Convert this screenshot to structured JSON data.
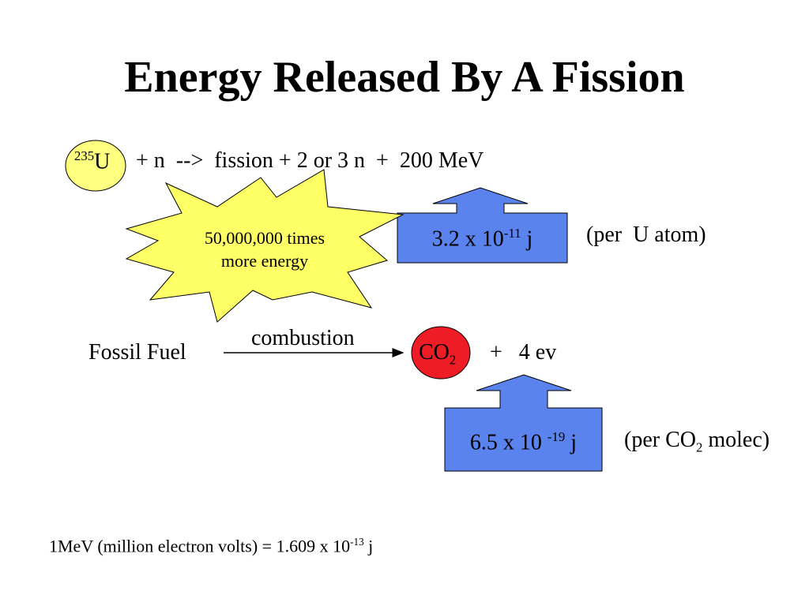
{
  "title": "Energy Released By A Fission",
  "fission": {
    "mass_number": "235",
    "symbol": "U",
    "reaction": "+ n  -->  fission + 2 or 3 n  +  200 MeV",
    "callout": [
      "50,000,000 times",
      "more energy"
    ],
    "energy": {
      "base": "3.2 x 10",
      "exponent": "-11",
      "unit": " j"
    },
    "note": "(per  U atom)"
  },
  "combustion": {
    "reactant": "Fossil Fuel",
    "arrow_label": "combustion",
    "product": "CO",
    "product_subscript": "2",
    "reaction": "+   4 ev",
    "energy": {
      "base": "6.5 x 10 ",
      "exponent": "-19",
      "unit": " j"
    },
    "note": {
      "before": "(per CO",
      "subscript": "2",
      "after": " molec)"
    }
  },
  "footnote": {
    "base": "1MeV (million electron volts) = 1.609 x 10",
    "exponent": "-13",
    "unit": " j"
  }
}
